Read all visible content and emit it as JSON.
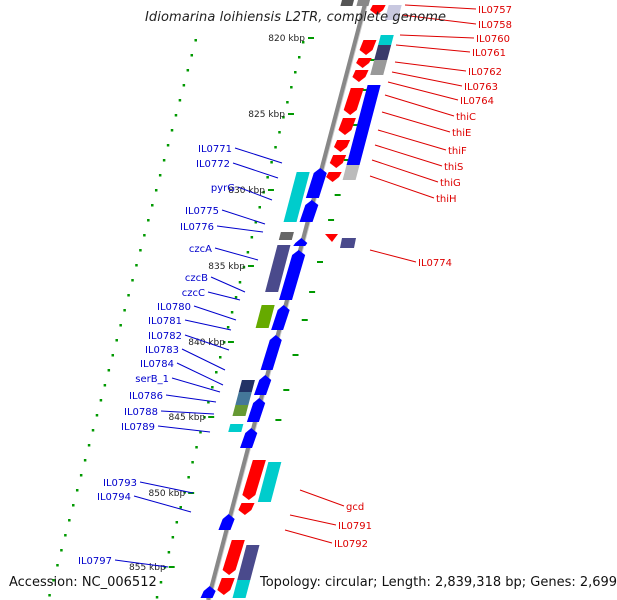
{
  "title": "Idiomarina loihiensis L2TR, complete genome",
  "footer": {
    "accession": "Accession: NC_006512",
    "topology": "Topology: circular; Length: 2,839,318 bp; Genes: 2,699"
  },
  "colors": {
    "forward_label": "#0000cc",
    "reverse_label": "#dd0000",
    "forward_cds": "#0000ff",
    "reverse_cds": "#ff0000",
    "backbone": "#888888",
    "kbp_tick": "#009900",
    "cog_cyan": "#00cccc",
    "cog_purple": "#4a4a8c",
    "cog_green": "#66aa00",
    "cog_gray": "#666666"
  },
  "kbp_labels": [
    "820 kbp",
    "825 kbp",
    "830 kbp",
    "835 kbp",
    "840 kbp",
    "845 kbp",
    "850 kbp",
    "855 kbp"
  ],
  "forward_genes": [
    "IL0771",
    "IL0772",
    "pyrG",
    "IL0775",
    "IL0776",
    "czcA",
    "czcB",
    "czcC",
    "IL0780",
    "IL0781",
    "IL0782",
    "IL0783",
    "IL0784",
    "serB_1",
    "IL0786",
    "IL0788",
    "IL0789",
    "IL0793",
    "IL0794",
    "IL0797"
  ],
  "reverse_genes": [
    "IL0757",
    "IL0758",
    "IL0760",
    "IL0761",
    "IL0762",
    "IL0763",
    "IL0764",
    "thiC",
    "thiE",
    "thiF",
    "thiS",
    "thiG",
    "thiH",
    "IL0774",
    "gcd",
    "IL0791",
    "IL0792"
  ]
}
